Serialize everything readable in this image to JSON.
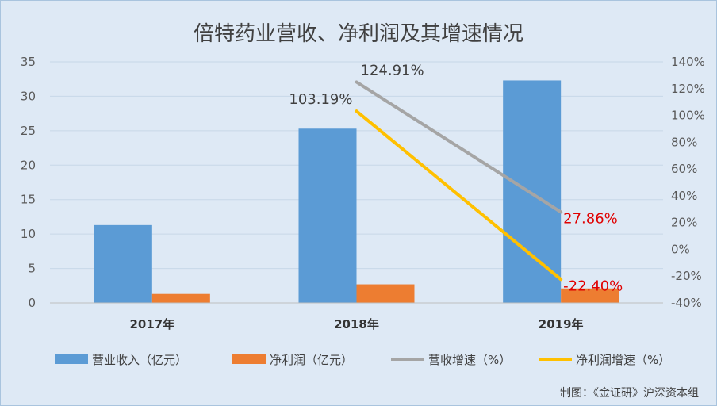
{
  "chart_data": {
    "type": "bar",
    "title": "倍特药业营收、净利润及其增速情况",
    "categories": [
      "2017年",
      "2018年",
      "2019年"
    ],
    "series": [
      {
        "name": "营业收入（亿元）",
        "type": "bar",
        "axis": "left",
        "color": "#5b9bd5",
        "values": [
          11.3,
          25.3,
          32.3
        ]
      },
      {
        "name": "净利润（亿元）",
        "type": "bar",
        "axis": "left",
        "color": "#ed7d31",
        "values": [
          1.3,
          2.7,
          2.1
        ]
      },
      {
        "name": "营收增速（%）",
        "type": "line",
        "axis": "right",
        "color": "#a5a5a5",
        "values": [
          null,
          124.91,
          27.86
        ],
        "labels": [
          "",
          "124.91%",
          "27.86%"
        ],
        "label_colors": [
          "",
          "#404040",
          "#e00000"
        ]
      },
      {
        "name": "净利润增速（%）",
        "type": "line",
        "axis": "right",
        "color": "#ffc000",
        "values": [
          null,
          103.19,
          -22.4
        ],
        "labels": [
          "",
          "103.19%",
          "-22.40%"
        ],
        "label_colors": [
          "",
          "#404040",
          "#e00000"
        ]
      }
    ],
    "ylim_left": [
      0,
      35
    ],
    "yticks_left": [
      "0",
      "5",
      "10",
      "15",
      "20",
      "25",
      "30",
      "35"
    ],
    "ylim_right": [
      -40,
      140
    ],
    "yticks_right": [
      "-40%",
      "-20%",
      "0%",
      "20%",
      "40%",
      "60%",
      "80%",
      "100%",
      "120%",
      "140%"
    ],
    "grid": true,
    "legend_position": "bottom",
    "source": "制图：《金证研》沪深资本组"
  }
}
